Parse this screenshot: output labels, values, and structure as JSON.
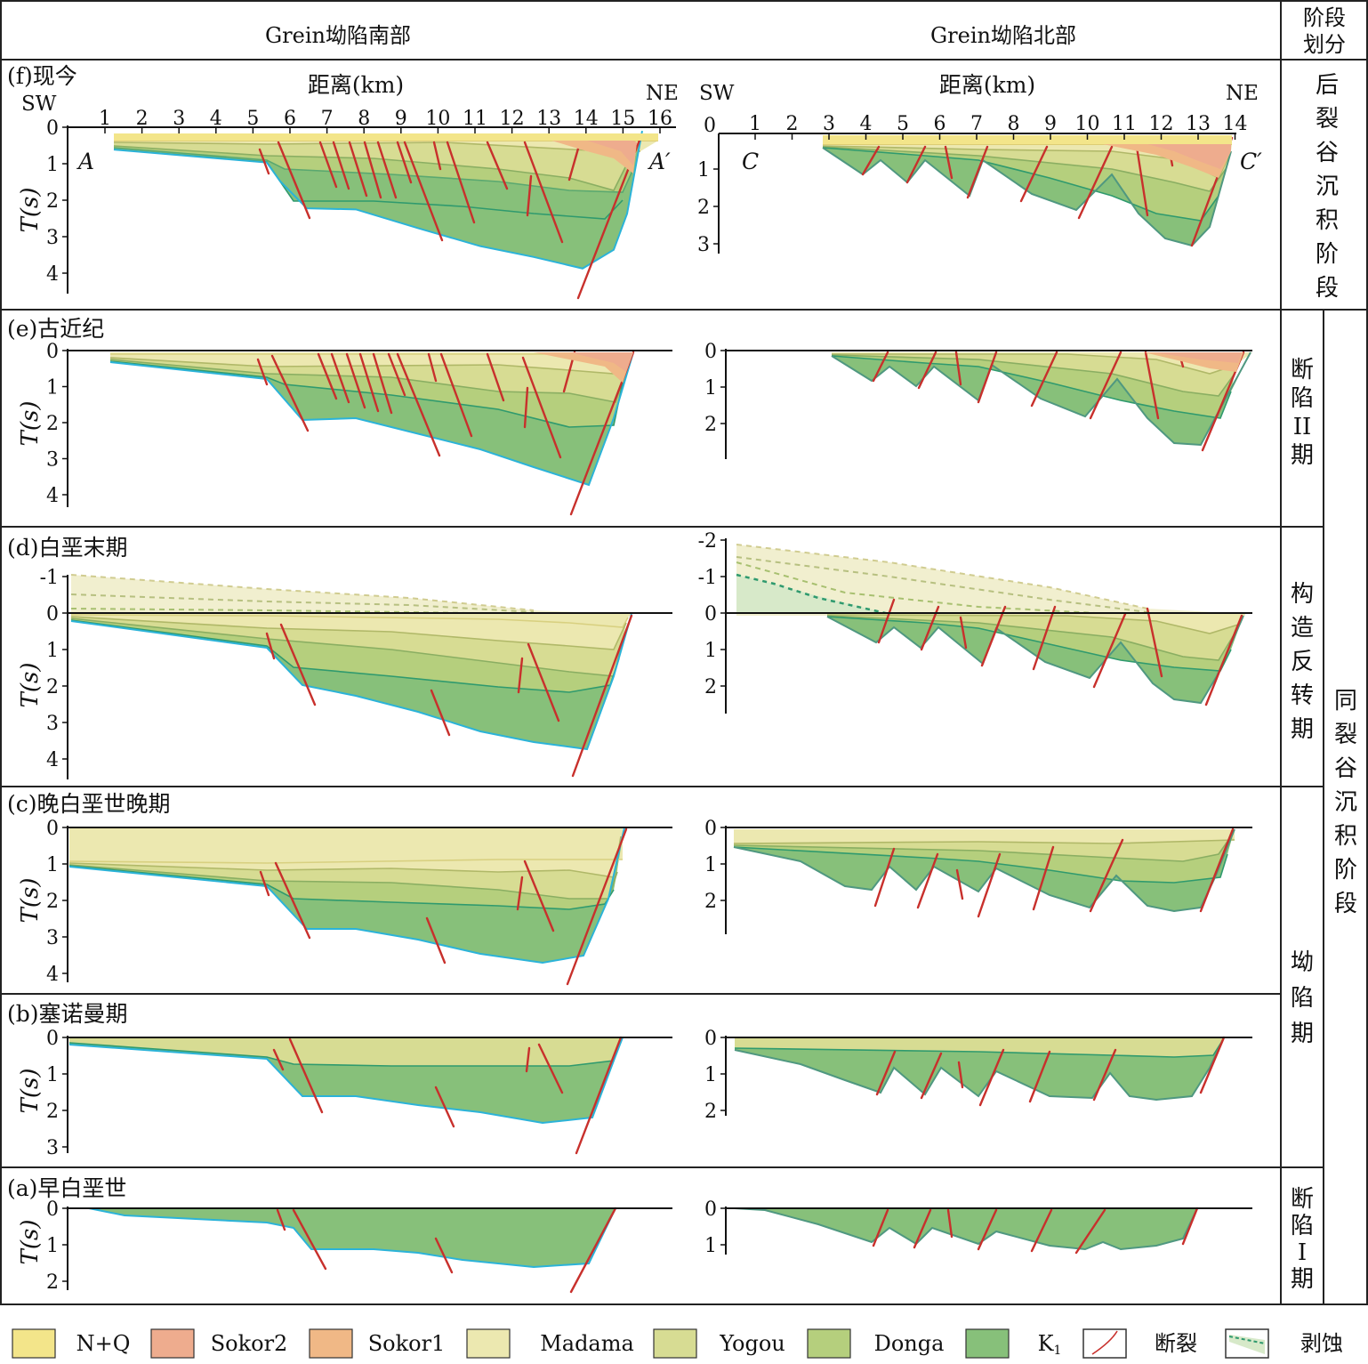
{
  "header": {
    "south_title": "Grein坳陷南部",
    "north_title": "Grein坳陷北部",
    "stage_header": [
      "阶段",
      "划分"
    ]
  },
  "panels": {
    "f": {
      "label": "(f)现今",
      "stage": "后裂谷沉积阶段"
    },
    "e": {
      "label": "(e)古近纪",
      "stage": "断陷II期"
    },
    "d": {
      "label": "(d)白垩末期",
      "stage": "构造反转期"
    },
    "c": {
      "label": "(c)晚白垩世晚期",
      "stage": "坳陷期"
    },
    "b": {
      "label": "(b)塞诺曼期"
    },
    "a": {
      "label": "(a)早白垩世",
      "stage": "断陷I期"
    }
  },
  "big_stage": "同裂谷沉积阶段",
  "axis_text": {
    "distance": "距离(km)",
    "y_label": "T(s)",
    "sw": "SW",
    "ne": "NE",
    "a": "A",
    "a_prime": "A′",
    "c": "C",
    "c_prime": "C′"
  },
  "south_km_ticks": [
    "1",
    "2",
    "3",
    "4",
    "5",
    "6",
    "7",
    "8",
    "9",
    "10",
    "11",
    "12",
    "13",
    "14",
    "15",
    "16"
  ],
  "north_km_ticks": [
    "1",
    "2",
    "3",
    "4",
    "5",
    "6",
    "7",
    "8",
    "9",
    "10",
    "11",
    "12",
    "13",
    "14"
  ],
  "zero": "0",
  "y_ticks": {
    "f_south": [
      "0",
      "1",
      "2",
      "3",
      "4"
    ],
    "f_north": [
      "1",
      "2",
      "3"
    ],
    "e_south": [
      "0",
      "1",
      "2",
      "3",
      "4"
    ],
    "e_north": [
      "0",
      "1",
      "2"
    ],
    "d_south": [
      "-1",
      "0",
      "1",
      "2",
      "3",
      "4"
    ],
    "d_north": [
      "-2",
      "-1",
      "0",
      "1",
      "2"
    ],
    "c_south": [
      "0",
      "1",
      "2",
      "3",
      "4"
    ],
    "c_north": [
      "0",
      "1",
      "2"
    ],
    "b_south": [
      "0",
      "1",
      "2",
      "3"
    ],
    "b_north": [
      "0",
      "1",
      "2"
    ],
    "a_south": [
      "0",
      "1",
      "2"
    ],
    "a_north": [
      "0",
      "1"
    ]
  },
  "legend": [
    {
      "label": "N+Q",
      "color": "#f3e58a"
    },
    {
      "label": "Sokor2",
      "color": "#eeac8e"
    },
    {
      "label": "Sokor1",
      "color": "#f0b886"
    },
    {
      "label": "Madama",
      "color": "#ece8b0"
    },
    {
      "label": "Yogou",
      "color": "#d7dc93"
    },
    {
      "label": "Donga",
      "color": "#b5cf7d"
    },
    {
      "label": "K1",
      "color": "#87c07a"
    },
    {
      "label": "断裂",
      "icon": "fault-icon"
    },
    {
      "label": "剥蚀",
      "icon": "erosion-icon"
    }
  ],
  "colors": {
    "fault": "#c8302c",
    "base_line": "#2bb3d8",
    "boundary_line": "#2f9a6e"
  }
}
